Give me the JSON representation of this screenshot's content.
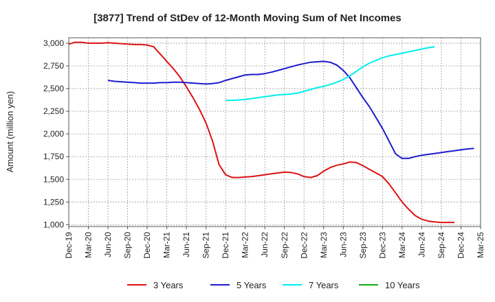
{
  "chart_data": {
    "type": "line",
    "title": "[3877]  Trend of StDev of 12-Month Moving Sum of Net Incomes",
    "xlabel": "",
    "ylabel": "Amount (million yen)",
    "x_tick_labels": [
      "Dec-19",
      "Mar-20",
      "Jun-20",
      "Sep-20",
      "Dec-20",
      "Mar-21",
      "Jun-21",
      "Sep-21",
      "Dec-21",
      "Mar-22",
      "Jun-22",
      "Sep-22",
      "Dec-22",
      "Mar-23",
      "Jun-23",
      "Sep-23",
      "Dec-23",
      "Mar-24",
      "Jun-24",
      "Sep-24",
      "Dec-24",
      "Mar-25"
    ],
    "y_tick_labels": [
      "1,000",
      "1,250",
      "1,500",
      "1,750",
      "2,000",
      "2,250",
      "2,500",
      "2,750",
      "3,000"
    ],
    "y_ticks": [
      1000,
      1250,
      1500,
      1750,
      2000,
      2250,
      2500,
      2750,
      3000
    ],
    "ylim": [
      980,
      3060
    ],
    "grid": true,
    "legend_position": "bottom",
    "series": [
      {
        "name": "3 Years",
        "color": "#dd1111",
        "start_index": 0,
        "values": [
          2990,
          3010,
          3010,
          3000,
          3000,
          3000,
          3005,
          3000,
          2995,
          2990,
          2985,
          2985,
          2980,
          2960,
          2880,
          2800,
          2720,
          2630,
          2520,
          2400,
          2270,
          2120,
          1920,
          1660,
          1550,
          1520,
          1520,
          1525,
          1530,
          1540,
          1550,
          1560,
          1570,
          1580,
          1575,
          1560,
          1530,
          1520,
          1540,
          1590,
          1630,
          1655,
          1670,
          1690,
          1685,
          1650,
          1610,
          1570,
          1530,
          1450,
          1350,
          1250,
          1170,
          1100,
          1060,
          1040,
          1030,
          1025,
          1025,
          1025
        ]
      },
      {
        "name": "5 Years",
        "color": "#1a1acc",
        "start_index": 6,
        "values": [
          2590,
          2580,
          2575,
          2570,
          2565,
          2560,
          2560,
          2560,
          2565,
          2565,
          2570,
          2570,
          2565,
          2560,
          2555,
          2550,
          2555,
          2565,
          2590,
          2610,
          2630,
          2650,
          2655,
          2655,
          2665,
          2680,
          2700,
          2720,
          2740,
          2760,
          2775,
          2790,
          2795,
          2800,
          2790,
          2760,
          2700,
          2620,
          2510,
          2400,
          2300,
          2180,
          2060,
          1920,
          1780,
          1730,
          1730,
          1750,
          1765,
          1775,
          1785,
          1795,
          1805,
          1815,
          1825,
          1835,
          1840
        ]
      },
      {
        "name": "7 Years",
        "color": "#00eeee",
        "start_index": 24,
        "values": [
          2370,
          2370,
          2375,
          2380,
          2390,
          2400,
          2410,
          2420,
          2430,
          2435,
          2440,
          2450,
          2470,
          2490,
          2510,
          2525,
          2545,
          2570,
          2600,
          2640,
          2690,
          2740,
          2780,
          2810,
          2840,
          2860,
          2875,
          2890,
          2905,
          2920,
          2935,
          2950,
          2960
        ]
      },
      {
        "name": "10 Years",
        "color": "#11aa11",
        "start_index": 0,
        "values": []
      }
    ]
  }
}
